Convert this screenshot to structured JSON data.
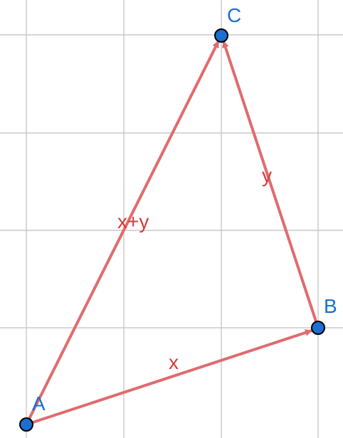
{
  "colors": {
    "vector": "#e06b6e",
    "vector_label": "#d93a3a",
    "point_fill": "#1a6fd1",
    "point_label": "#1a6fd1",
    "grid": "#c8c8c8"
  },
  "points": {
    "A": {
      "label": "A"
    },
    "B": {
      "label": "B"
    },
    "C": {
      "label": "C"
    }
  },
  "vectors": {
    "AB": {
      "label": "x"
    },
    "AC": {
      "label": "x+y"
    },
    "BC": {
      "label": "y"
    }
  }
}
